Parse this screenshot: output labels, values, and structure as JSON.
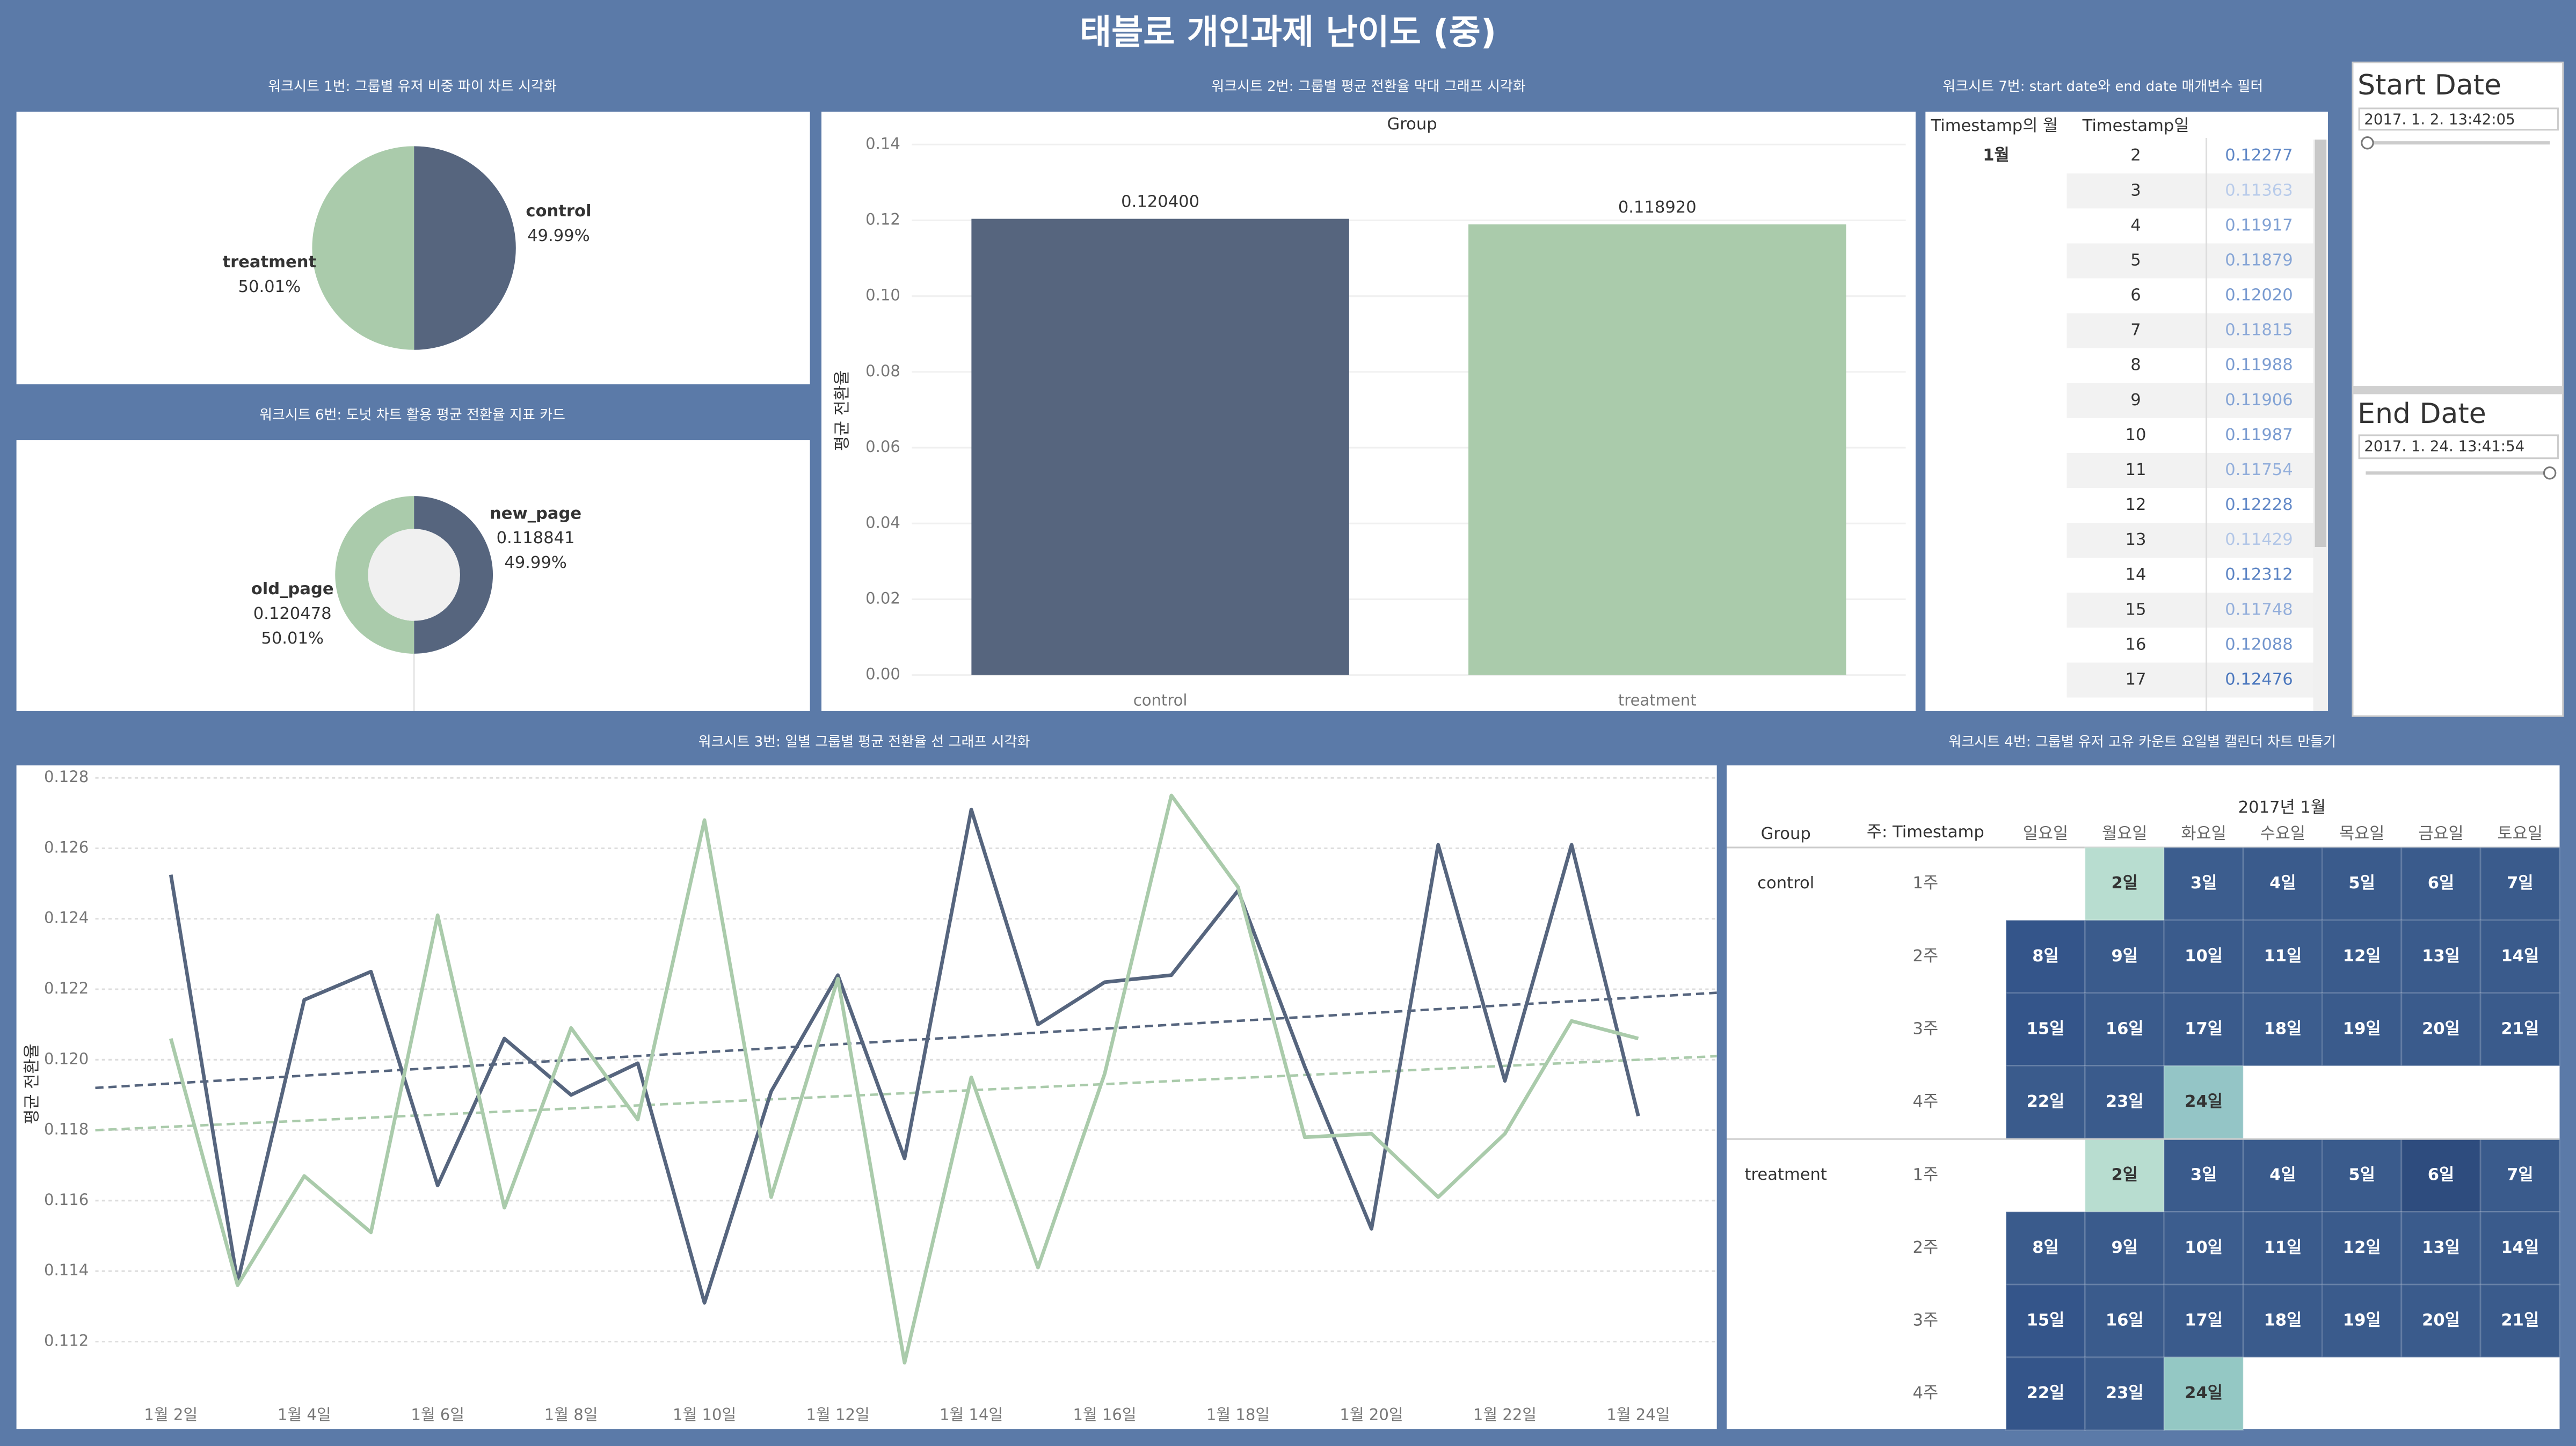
{
  "title": "태블로 개인과제 난이도 (중)",
  "chart_data": [
    {
      "type": "pie",
      "title": "워크시트 1번: 그룹별 유저 비중 파이 차트 시각화",
      "categories": [
        "control",
        "treatment"
      ],
      "values": [
        49.99,
        50.01
      ],
      "value_labels": [
        "49.99%",
        "50.01%"
      ],
      "colors": [
        "#56657e",
        "#aacbab"
      ]
    },
    {
      "type": "donut",
      "title": "워크시트 6번: 도넛 차트 활용 평균 전환율 지표 카드",
      "categories": [
        "new_page",
        "old_page"
      ],
      "values": [
        49.99,
        50.01
      ],
      "value_labels": [
        "49.99%",
        "50.01%"
      ],
      "averages": [
        0.118841,
        0.120478
      ],
      "colors": [
        "#56657e",
        "#aacbab"
      ]
    },
    {
      "type": "bar",
      "title": "워크시트 2번: 그룹별 평균 전환율 막대 그래프 시각화",
      "header": "Group",
      "y_label": "평균 전환율",
      "categories": [
        "control",
        "treatment"
      ],
      "values": [
        0.1204,
        0.11892
      ],
      "value_labels": [
        "0.120400",
        "0.118920"
      ],
      "colors": [
        "#56657e",
        "#aacbab"
      ],
      "ylim": [
        0,
        0.14
      ],
      "yticks": [
        {
          "value": 0,
          "label": "0.00"
        },
        0.02,
        0.04,
        0.06,
        0.08,
        {
          "value": 0.1,
          "label": "0.10"
        },
        0.12,
        0.14
      ],
      "grid": true
    },
    {
      "type": "line",
      "title": "워크시트 3번: 일별 그룹별 평균 전환율 선 그래프 시각화",
      "y_label": "평균 전환율",
      "categories": [
        "1월 2일",
        null,
        "1월 4일",
        null,
        "1월 6일",
        null,
        "1월 8일",
        null,
        "1월 10일",
        null,
        "1월 12일",
        null,
        "1월 14일",
        null,
        "1월 16일",
        null,
        "1월 18일",
        null,
        "1월 20일",
        null,
        "1월 22일",
        null,
        "1월 24일"
      ],
      "series": [
        {
          "color": "#56657e",
          "values": [
            0.12525,
            0.11368,
            0.1217,
            0.1225,
            0.11643,
            0.1206,
            0.119,
            0.1199,
            0.1131,
            0.1191,
            0.1224,
            0.1172,
            0.1271,
            0.121,
            0.1222,
            0.1224,
            0.1248,
            0.1198,
            0.1152,
            0.1261,
            0.1194,
            0.1261,
            0.1184
          ],
          "trend": [
            0.1192,
            0.1219
          ]
        },
        {
          "color": "#aacbab",
          "values": [
            0.1206,
            0.1136,
            0.1167,
            0.1151,
            0.1241,
            0.1158,
            0.1209,
            0.1183,
            0.1268,
            0.1161,
            0.1223,
            0.1114,
            0.1195,
            0.1141,
            0.1196,
            0.1275,
            0.1249,
            0.1178,
            0.1179,
            0.1161,
            0.1179,
            0.1211,
            0.1206
          ],
          "trend": [
            0.118,
            0.1201
          ]
        }
      ],
      "ylim": [
        0.1105,
        0.1284
      ],
      "yticks": [
        0.112,
        0.114,
        0.116,
        0.118,
        {
          "value": 0.12,
          "label": "0.120"
        },
        0.122,
        0.124,
        0.126,
        0.128
      ],
      "grid": true
    }
  ],
  "table": {
    "title": "워크시트 7번: start date와 end date 매개변수 필터",
    "headers": [
      "Timestamp의 월",
      "Timestamp일"
    ],
    "month": "1월",
    "days": [
      2,
      3,
      4,
      5,
      6,
      7,
      8,
      9,
      10,
      11,
      12,
      13,
      14,
      15,
      16,
      17
    ],
    "values": [
      0.12277,
      0.11363,
      0.11917,
      0.11879,
      0.1202,
      0.11815,
      0.11988,
      0.11906,
      0.11987,
      0.11754,
      0.12228,
      0.11429,
      0.12312,
      0.11748,
      0.12088,
      0.12476
    ],
    "value_labels": [
      "0.12277",
      "0.11363",
      "0.11917",
      "0.11879",
      "0.12020",
      "0.11815",
      "0.11988",
      "0.11906",
      "0.11987",
      "0.11754",
      "0.12228",
      "0.11429",
      "0.12312",
      "0.11748",
      "0.12088",
      "0.12476"
    ]
  },
  "filters": {
    "start": {
      "label": "Start Date",
      "value": "2017. 1. 2. 13:42:05"
    },
    "end": {
      "label": "End Date",
      "value": "2017. 1. 24. 13:41:54"
    }
  },
  "calendar": {
    "title": "워크시트 4번: 그룹별 유저 고유 카운트 요일별 캘린더 차트 만들기",
    "month": "2017년 1월",
    "headers": [
      "Group",
      "주: Timestamp"
    ],
    "weekdays": [
      "일요일",
      "월요일",
      "화요일",
      "수요일",
      "목요일",
      "금요일",
      "토요일"
    ],
    "weeks": [
      "1주",
      "2주",
      "3주",
      "4주"
    ],
    "days": [
      "2일",
      "3일",
      "4일",
      "5일",
      "6일",
      "7일",
      "8일",
      "9일",
      "10일",
      "11일",
      "12일",
      "13일",
      "14일",
      "15일",
      "16일",
      "17일",
      "18일",
      "19일",
      "20일",
      "21일",
      "22일",
      "23일",
      "24일"
    ],
    "groups": [
      {
        "name": "control",
        "colors": [
          "#b8ddd0",
          "#3c5d8e",
          "#3a5b8c",
          "#3a5b8c",
          "#3a5b8c",
          "#3a5b8c",
          "#34558a",
          "#3a5b8c",
          "#3a5b8c",
          "#3c5d8e",
          "#3a5b8c",
          "#3a5b8c",
          "#3a5b8c",
          "#34558a",
          "#3a5b8c",
          "#3a5b8c",
          "#3c5d8e",
          "#3a5b8c",
          "#3a5b8c",
          "#3a5b8c",
          "#3a5b8c",
          "#3a5b8c",
          "#94c5c6"
        ]
      },
      {
        "name": "treatment",
        "colors": [
          "#b8ddd0",
          "#3a5b8c",
          "#3a5b8c",
          "#3a5b8c",
          "#2e4c7e",
          "#3a5b8c",
          "#3a5b8c",
          "#3a5b8c",
          "#3c5d8e",
          "#3a5b8c",
          "#3a5b8c",
          "#3a5b8c",
          "#3a5b8c",
          "#34558a",
          "#3a5b8c",
          "#3a5b8c",
          "#3a5b8c",
          "#3a5b8c",
          "#3a5b8c",
          "#3a5b8c",
          "#34558a",
          "#3a5b8c",
          "#94c8c4"
        ]
      }
    ]
  }
}
